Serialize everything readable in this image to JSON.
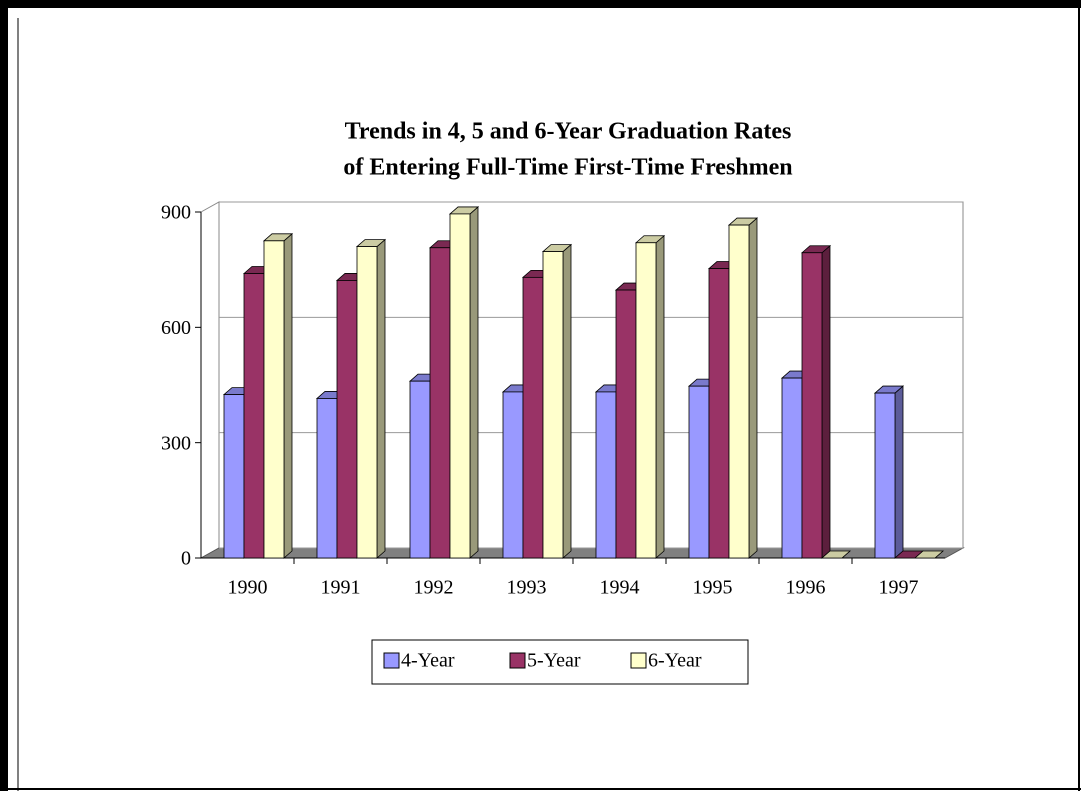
{
  "chart_data": {
    "type": "bar3d",
    "title": [
      "Trends in 4, 5 and 6-Year Graduation Rates",
      "of Entering Full-Time First-Time Freshmen"
    ],
    "categories": [
      "1990",
      "1991",
      "1992",
      "1993",
      "1994",
      "1995",
      "1996",
      "1997"
    ],
    "series": [
      {
        "name": "4-Year",
        "color": "#9999ff",
        "values": [
          425,
          415,
          460,
          432,
          432,
          447,
          468,
          429
        ]
      },
      {
        "name": "5-Year",
        "color": "#993366",
        "values": [
          740,
          722,
          807,
          730,
          697,
          753,
          794,
          0
        ]
      },
      {
        "name": "6-Year",
        "color": "#ffffcc",
        "values": [
          825,
          810,
          895,
          797,
          820,
          866,
          0,
          0
        ]
      }
    ],
    "ylim": [
      0,
      900
    ],
    "yticks": [
      0,
      300,
      600,
      900
    ],
    "grid": true,
    "legend": "bottom"
  }
}
